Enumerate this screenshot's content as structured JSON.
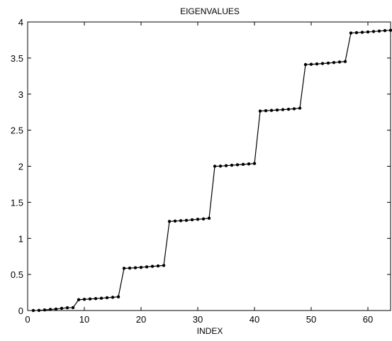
{
  "chart_data": {
    "type": "line",
    "title": "EIGENVALUES",
    "xlabel": "INDEX",
    "ylabel": "",
    "xlim": [
      0,
      64
    ],
    "ylim": [
      0,
      4
    ],
    "x_ticks": [
      0,
      10,
      20,
      30,
      40,
      50,
      60
    ],
    "y_ticks": [
      0,
      0.5,
      1,
      1.5,
      2,
      2.5,
      3,
      3.5,
      4
    ],
    "x_tick_labels": [
      "0",
      "10",
      "20",
      "30",
      "40",
      "50",
      "60"
    ],
    "y_tick_labels": [
      "0",
      "0.5",
      "1",
      "1.5",
      "2",
      "2.5",
      "3",
      "3.5",
      "4"
    ],
    "grid": false,
    "line_color": "#000000",
    "marker": "dot",
    "series": [
      {
        "x": [
          1,
          2,
          3,
          4,
          5,
          6,
          7,
          8,
          9,
          10,
          11,
          12,
          13,
          14,
          15,
          16,
          17,
          18,
          19,
          20,
          21,
          22,
          23,
          24,
          25,
          26,
          27,
          28,
          29,
          30,
          31,
          32,
          33,
          34,
          35,
          36,
          37,
          38,
          39,
          40,
          41,
          42,
          43,
          44,
          45,
          46,
          47,
          48,
          49,
          50,
          51,
          52,
          53,
          54,
          55,
          56,
          57,
          58,
          59,
          60,
          61,
          62,
          63,
          64
        ],
        "values": [
          0.0,
          0.002,
          0.008,
          0.015,
          0.02,
          0.03,
          0.038,
          0.04,
          0.15,
          0.155,
          0.16,
          0.165,
          0.17,
          0.178,
          0.183,
          0.19,
          0.585,
          0.588,
          0.593,
          0.598,
          0.605,
          0.612,
          0.618,
          0.625,
          1.235,
          1.24,
          1.245,
          1.25,
          1.258,
          1.265,
          1.27,
          1.28,
          2.0,
          2.002,
          2.008,
          2.014,
          2.02,
          2.026,
          2.032,
          2.038,
          2.765,
          2.77,
          2.774,
          2.78,
          2.785,
          2.79,
          2.797,
          2.805,
          3.41,
          3.413,
          3.418,
          3.424,
          3.43,
          3.438,
          3.445,
          3.452,
          3.847,
          3.852,
          3.857,
          3.862,
          3.868,
          3.874,
          3.88,
          3.885
        ]
      }
    ]
  }
}
